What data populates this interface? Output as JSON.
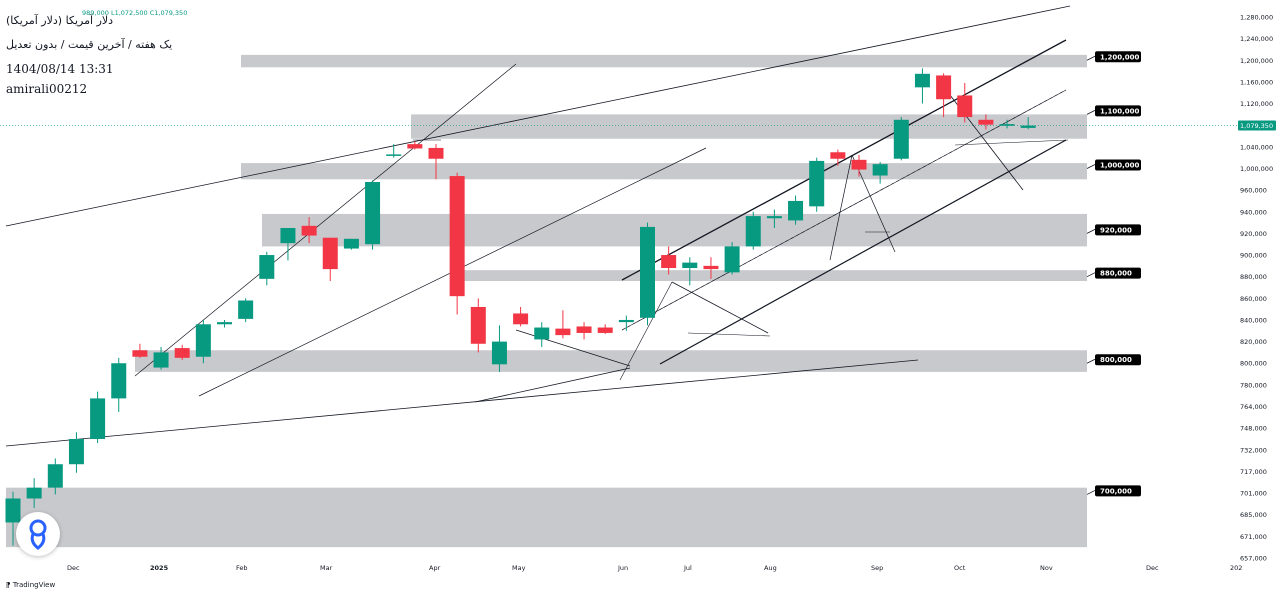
{
  "header": {
    "title": "دلار آمریکا (دلار آمریکا)",
    "ohlc_text": "989,000  L1,072,500  C1,079,350",
    "subtitle": "یک هفته / آخرین قیمت / بدون تعدیل",
    "timestamp": "1404/08/14 13:31",
    "author": "amirali00212"
  },
  "footer": {
    "brand": "TradingView"
  },
  "colors": {
    "up": "#089981",
    "down": "#f23645",
    "zone": "#c5c6ca",
    "label_bg": "#000000",
    "last_price_bg": "#089981"
  },
  "chart_data": {
    "type": "candlestick",
    "timeframe": "1W",
    "x_tick_labels": [
      "Dec",
      "2025",
      "Feb",
      "Mar",
      "Apr",
      "May",
      "Jun",
      "Jul",
      "Aug",
      "Sep",
      "Oct",
      "Nov",
      "Dec",
      "202"
    ],
    "y_scale": "log",
    "y_tick_labels": [
      "1,280,000",
      "1,240,000",
      "1,200,000",
      "1,160,000",
      "1,120,000",
      "1,080,000",
      "1,040,000",
      "1,000,000",
      "960,000",
      "940,000",
      "920,000",
      "900,000",
      "880,000",
      "860,000",
      "840,000",
      "820,000",
      "800,000",
      "780,000",
      "764,000",
      "748,000",
      "732,000",
      "717,000",
      "701,000",
      "685,000",
      "671,000",
      "657,000"
    ],
    "last_price": 1079350,
    "last_price_label": "1,079,350",
    "candles": [
      {
        "o": 680000,
        "h": 702000,
        "l": 665000,
        "c": 697000
      },
      {
        "o": 697000,
        "h": 712000,
        "l": 690000,
        "c": 705000
      },
      {
        "o": 705000,
        "h": 726000,
        "l": 700000,
        "c": 722000
      },
      {
        "o": 722000,
        "h": 745000,
        "l": 716000,
        "c": 740000
      },
      {
        "o": 740000,
        "h": 775000,
        "l": 737000,
        "c": 770000
      },
      {
        "o": 770000,
        "h": 805000,
        "l": 760000,
        "c": 800000
      },
      {
        "o": 812000,
        "h": 818000,
        "l": 805000,
        "c": 806000
      },
      {
        "o": 796000,
        "h": 815000,
        "l": 794000,
        "c": 810000
      },
      {
        "o": 814000,
        "h": 817000,
        "l": 803000,
        "c": 805000
      },
      {
        "o": 806000,
        "h": 840000,
        "l": 800000,
        "c": 836000
      },
      {
        "o": 836000,
        "h": 840000,
        "l": 833000,
        "c": 838000
      },
      {
        "o": 841000,
        "h": 860000,
        "l": 838000,
        "c": 858000
      },
      {
        "o": 878000,
        "h": 903000,
        "l": 872000,
        "c": 900000
      },
      {
        "o": 911000,
        "h": 925000,
        "l": 895000,
        "c": 925000
      },
      {
        "o": 927000,
        "h": 935000,
        "l": 911000,
        "c": 918000
      },
      {
        "o": 916000,
        "h": 916000,
        "l": 876000,
        "c": 887000
      },
      {
        "o": 906000,
        "h": 915000,
        "l": 905000,
        "c": 915000
      },
      {
        "o": 910000,
        "h": 978000,
        "l": 905000,
        "c": 975000
      },
      {
        "o": 1024000,
        "h": 1045000,
        "l": 1020000,
        "c": 1026000
      },
      {
        "o": 1045000,
        "h": 1050000,
        "l": 1035000,
        "c": 1037000
      },
      {
        "o": 1038000,
        "h": 1045000,
        "l": 980000,
        "c": 1018000
      },
      {
        "o": 986000,
        "h": 992000,
        "l": 845000,
        "c": 862000
      },
      {
        "o": 852000,
        "h": 860000,
        "l": 810000,
        "c": 818000
      },
      {
        "o": 799000,
        "h": 835000,
        "l": 792000,
        "c": 820000
      },
      {
        "o": 846000,
        "h": 852000,
        "l": 834000,
        "c": 836000
      },
      {
        "o": 822000,
        "h": 838000,
        "l": 815000,
        "c": 833000
      },
      {
        "o": 832000,
        "h": 849000,
        "l": 823000,
        "c": 826000
      },
      {
        "o": 834000,
        "h": 838000,
        "l": 822000,
        "c": 828000
      },
      {
        "o": 833000,
        "h": 836000,
        "l": 827000,
        "c": 828000
      },
      {
        "o": 838000,
        "h": 844000,
        "l": 830000,
        "c": 840000
      },
      {
        "o": 842000,
        "h": 930000,
        "l": 835000,
        "c": 926000
      },
      {
        "o": 900000,
        "h": 908000,
        "l": 882000,
        "c": 888000
      },
      {
        "o": 888000,
        "h": 898000,
        "l": 872000,
        "c": 893000
      },
      {
        "o": 890000,
        "h": 898000,
        "l": 878000,
        "c": 887000
      },
      {
        "o": 884000,
        "h": 912000,
        "l": 882000,
        "c": 908000
      },
      {
        "o": 908000,
        "h": 940000,
        "l": 905000,
        "c": 936000
      },
      {
        "o": 934000,
        "h": 942000,
        "l": 925000,
        "c": 936000
      },
      {
        "o": 932000,
        "h": 955000,
        "l": 928000,
        "c": 950000
      },
      {
        "o": 945000,
        "h": 1020000,
        "l": 940000,
        "c": 1014000
      },
      {
        "o": 1030000,
        "h": 1035000,
        "l": 1005000,
        "c": 1018000
      },
      {
        "o": 1016000,
        "h": 1025000,
        "l": 985000,
        "c": 998000
      },
      {
        "o": 987000,
        "h": 1012000,
        "l": 972000,
        "c": 1008000
      },
      {
        "o": 1018000,
        "h": 1095000,
        "l": 1015000,
        "c": 1090000
      },
      {
        "o": 1150000,
        "h": 1185000,
        "l": 1120000,
        "c": 1175000
      },
      {
        "o": 1172000,
        "h": 1176000,
        "l": 1095000,
        "c": 1128000
      },
      {
        "o": 1135000,
        "h": 1158000,
        "l": 1085000,
        "c": 1095000
      },
      {
        "o": 1090000,
        "h": 1100000,
        "l": 1072000,
        "c": 1081000
      },
      {
        "o": 1079000,
        "h": 1090000,
        "l": 1074000,
        "c": 1082000
      },
      {
        "o": 1075000,
        "h": 1095000,
        "l": 1072500,
        "c": 1079350
      }
    ],
    "support_resistance_labels": [
      {
        "price": 1200000,
        "label": "1,200,000"
      },
      {
        "price": 1100000,
        "label": "1,100,000"
      },
      {
        "price": 1000000,
        "label": "1,000,000"
      },
      {
        "price": 920000,
        "label": "920,000"
      },
      {
        "price": 880000,
        "label": "880,000"
      },
      {
        "price": 800000,
        "label": "800,000"
      },
      {
        "price": 700000,
        "label": "700,000"
      }
    ],
    "zones": [
      {
        "low": 1187000,
        "high": 1210000
      },
      {
        "low": 1055000,
        "high": 1100000
      },
      {
        "low": 980000,
        "high": 1010000
      },
      {
        "low": 908000,
        "high": 938000
      },
      {
        "low": 876000,
        "high": 886000
      },
      {
        "low": 792000,
        "high": 812000
      },
      {
        "low": 664000,
        "high": 705000
      }
    ],
    "grid": false
  }
}
